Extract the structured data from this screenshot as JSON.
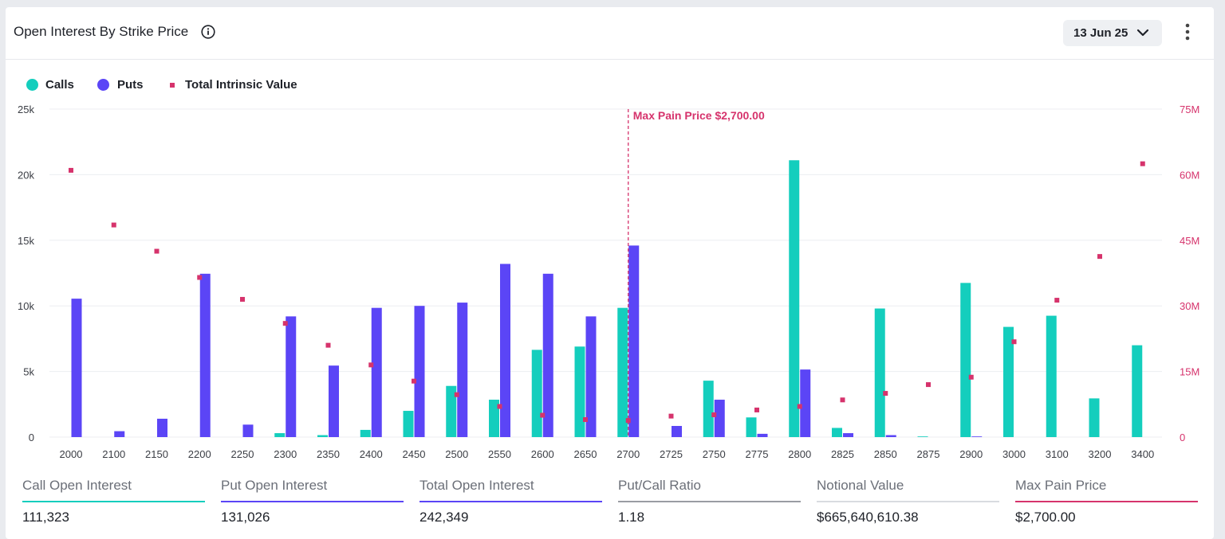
{
  "header": {
    "title": "Open Interest By Strike Price",
    "date_selected": "13 Jun 25"
  },
  "legend": {
    "calls": "Calls",
    "puts": "Puts",
    "intrinsic": "Total Intrinsic Value"
  },
  "colors": {
    "calls": "#14cebd",
    "puts": "#5b45f6",
    "intrinsic": "#d6336c",
    "max_pain": "#d6336c"
  },
  "chart_data": {
    "type": "bar",
    "categories": [
      "2000",
      "2100",
      "2150",
      "2200",
      "2250",
      "2300",
      "2350",
      "2400",
      "2450",
      "2500",
      "2550",
      "2600",
      "2650",
      "2700",
      "2725",
      "2750",
      "2775",
      "2800",
      "2825",
      "2850",
      "2875",
      "2900",
      "3000",
      "3100",
      "3200",
      "3400"
    ],
    "series": [
      {
        "name": "Calls",
        "axis": "left",
        "values": [
          0,
          0,
          0,
          0,
          0,
          300,
          150,
          550,
          2000,
          3900,
          2850,
          6650,
          6900,
          9850,
          0,
          4300,
          1500,
          21100,
          700,
          9800,
          50,
          11750,
          8400,
          9250,
          2950,
          7000
        ]
      },
      {
        "name": "Puts",
        "axis": "left",
        "values": [
          10550,
          450,
          1400,
          12450,
          950,
          9200,
          5450,
          9850,
          10000,
          10250,
          13200,
          12450,
          9200,
          14600,
          850,
          2850,
          250,
          5150,
          300,
          150,
          0,
          50,
          0,
          0,
          0,
          0
        ]
      },
      {
        "name": "Total Intrinsic Value",
        "axis": "right",
        "type": "scatter",
        "values": [
          61000000,
          48500000,
          42500000,
          36500000,
          31500000,
          26000000,
          21000000,
          16500000,
          12800000,
          9700000,
          7000000,
          5000000,
          4000000,
          3800000,
          4800000,
          5100000,
          6200000,
          7000000,
          8500000,
          10000000,
          12000000,
          13700000,
          21800000,
          31300000,
          41300000,
          62500000
        ]
      }
    ],
    "y_left": {
      "ticks": [
        "0",
        "5k",
        "10k",
        "15k",
        "20k",
        "25k"
      ],
      "min": 0,
      "max": 25000
    },
    "y_right": {
      "ticks": [
        "0",
        "15M",
        "30M",
        "45M",
        "60M",
        "75M"
      ],
      "min": 0,
      "max": 75000000
    },
    "annotation": {
      "label": "Max Pain Price $2,700.00",
      "category": "2700"
    },
    "grid": true,
    "legend_position": "top-left"
  },
  "stats": [
    {
      "label": "Call Open Interest",
      "value": "111,323",
      "color": "#14cebd"
    },
    {
      "label": "Put Open Interest",
      "value": "131,026",
      "color": "#5b45f6"
    },
    {
      "label": "Total Open Interest",
      "value": "242,349",
      "color": "#5b45f6"
    },
    {
      "label": "Put/Call Ratio",
      "value": "1.18",
      "color": "#9a9ca3"
    },
    {
      "label": "Notional Value",
      "value": "$665,640,610.38",
      "color": "#d9dbe0"
    },
    {
      "label": "Max Pain Price",
      "value": "$2,700.00",
      "color": "#d6336c"
    }
  ]
}
